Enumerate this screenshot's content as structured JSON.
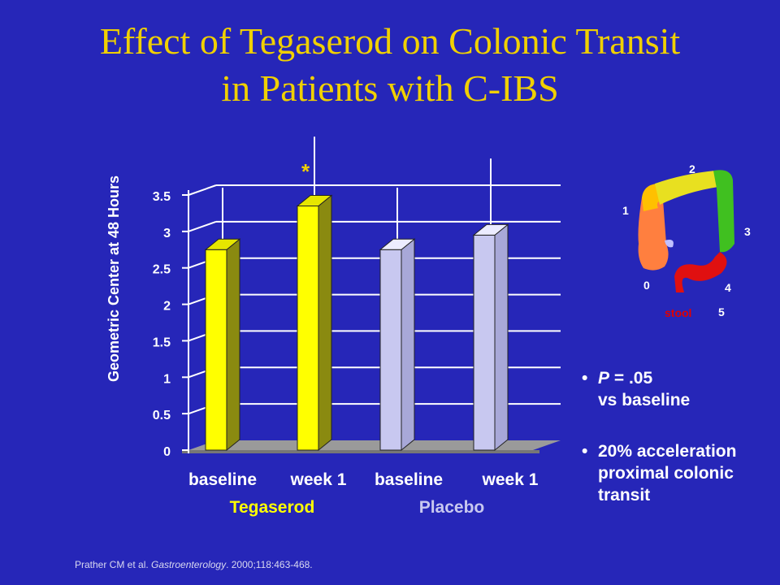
{
  "title_lines": [
    "Effect of Tegaserod on Colonic Transit",
    "in Patients with C-IBS"
  ],
  "chart_data": {
    "type": "bar",
    "categories": [
      "baseline",
      "week 1",
      "baseline",
      "week 1"
    ],
    "groups": [
      {
        "name": "Tegaserod",
        "categories": [
          "baseline",
          "week 1"
        ],
        "color": "#ffff00"
      },
      {
        "name": "Placebo",
        "categories": [
          "baseline",
          "week 1"
        ],
        "color": "#c8c8f0"
      }
    ],
    "values": [
      2.75,
      3.35,
      2.75,
      2.95
    ],
    "error_upper": [
      3.6,
      4.3,
      3.6,
      4.0
    ],
    "ylabel": "Geometric Center at  48 Hours",
    "ylim": [
      0,
      3.5
    ],
    "yticks": [
      "0",
      "0.5",
      "1",
      "1.5",
      "2",
      "2.5",
      "3",
      "3.5"
    ],
    "significance_marker": "*",
    "grid": true,
    "colors": {
      "tegaserod": "#ffff00",
      "placebo": "#c8c8f0",
      "background": "#2626b8"
    }
  },
  "colon_diagram": {
    "segment_numbers": [
      "0",
      "1",
      "2",
      "3",
      "4",
      "5"
    ],
    "stool_label": "stool",
    "colors": {
      "cecum": "#ff7f3f",
      "ascending": "#ffc000",
      "transverse": "#e8e020",
      "descending": "#40c020",
      "sigmoid": "#e01010",
      "stool": "#e00000"
    }
  },
  "notes": [
    {
      "bullet": "•",
      "lines": [
        "P = .05",
        "vs baseline"
      ],
      "italic_prefix": "P"
    },
    {
      "bullet": "•",
      "lines": [
        "20% acceleration",
        "proximal colonic",
        "transit"
      ]
    }
  ],
  "citation": {
    "authors": "Prather CM et al. ",
    "journal": "Gastroenterology",
    "rest": ". 2000;118:463-468."
  }
}
